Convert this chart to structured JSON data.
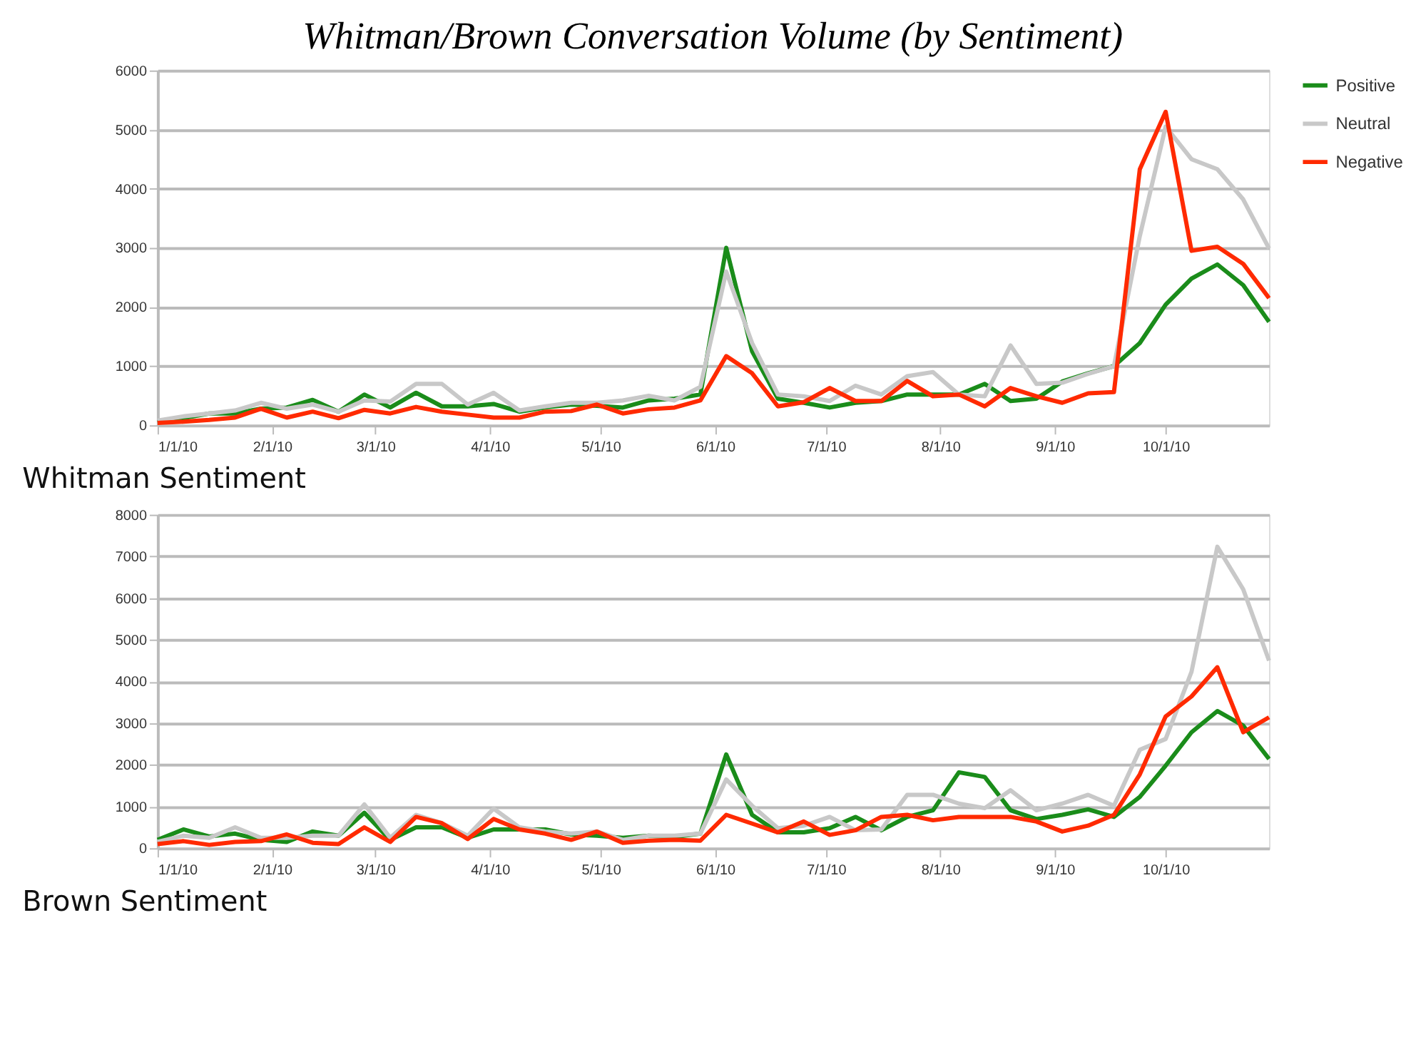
{
  "chart_data": [
    {
      "type": "line",
      "title": "Whitman/Brown Conversation Volume (by Sentiment)",
      "annotations": [
        "Whitman Sentiment"
      ],
      "x": [
        "2010-01-01",
        "2010-01-08",
        "2010-01-15",
        "2010-01-22",
        "2010-01-29",
        "2010-02-05",
        "2010-02-12",
        "2010-02-19",
        "2010-02-26",
        "2010-03-05",
        "2010-03-12",
        "2010-03-19",
        "2010-03-26",
        "2010-04-02",
        "2010-04-09",
        "2010-04-16",
        "2010-04-23",
        "2010-04-30",
        "2010-05-07",
        "2010-05-14",
        "2010-05-21",
        "2010-05-28",
        "2010-06-04",
        "2010-06-11",
        "2010-06-18",
        "2010-06-25",
        "2010-07-02",
        "2010-07-09",
        "2010-07-16",
        "2010-07-23",
        "2010-07-30",
        "2010-08-06",
        "2010-08-13",
        "2010-08-20",
        "2010-08-27",
        "2010-09-03",
        "2010-09-10",
        "2010-09-17",
        "2010-09-24",
        "2010-10-01",
        "2010-10-08",
        "2010-10-15",
        "2010-10-22",
        "2010-10-29"
      ],
      "series": [
        {
          "name": "Positive",
          "color": "#1a8c1a",
          "values": [
            50,
            120,
            200,
            200,
            280,
            300,
            430,
            230,
            520,
            300,
            550,
            320,
            320,
            360,
            230,
            300,
            350,
            330,
            300,
            420,
            450,
            520,
            3000,
            1250,
            450,
            380,
            300,
            380,
            410,
            520,
            520,
            520,
            700,
            410,
            450,
            740,
            880,
            1000,
            1390,
            2040,
            2480,
            2720,
            2370,
            1750
          ]
        },
        {
          "name": "Neutral",
          "color": "#c8c8c8",
          "values": [
            80,
            150,
            200,
            250,
            380,
            280,
            350,
            230,
            420,
            400,
            700,
            700,
            350,
            550,
            250,
            320,
            380,
            380,
            420,
            500,
            420,
            650,
            2600,
            1390,
            520,
            490,
            410,
            670,
            520,
            830,
            900,
            520,
            490,
            1350,
            700,
            720,
            870,
            1000,
            3200,
            5050,
            4500,
            4330,
            3820,
            2990
          ]
        },
        {
          "name": "Negative",
          "color": "#ff2a00",
          "values": [
            40,
            60,
            90,
            130,
            280,
            130,
            230,
            120,
            260,
            200,
            310,
            230,
            180,
            130,
            130,
            230,
            240,
            350,
            200,
            270,
            300,
            420,
            1170,
            880,
            320,
            390,
            630,
            410,
            410,
            750,
            490,
            520,
            320,
            630,
            490,
            380,
            540,
            560,
            4330,
            5300,
            2950,
            3020,
            2730,
            2150
          ]
        }
      ],
      "xlim": [
        "2010-01-01",
        "2010-10-29"
      ],
      "xticks": [
        {
          "value": "2010-01-01",
          "label": "1/1/10"
        },
        {
          "value": "2010-02-01",
          "label": "2/1/10"
        },
        {
          "value": "2010-03-01",
          "label": "3/1/10"
        },
        {
          "value": "2010-04-01",
          "label": "4/1/10"
        },
        {
          "value": "2010-05-01",
          "label": "5/1/10"
        },
        {
          "value": "2010-06-01",
          "label": "6/1/10"
        },
        {
          "value": "2010-07-01",
          "label": "7/1/10"
        },
        {
          "value": "2010-08-01",
          "label": "8/1/10"
        },
        {
          "value": "2010-09-01",
          "label": "9/1/10"
        },
        {
          "value": "2010-10-01",
          "label": "10/1/10"
        }
      ],
      "ylim": [
        0,
        6000
      ],
      "yticks": [
        0,
        1000,
        2000,
        3000,
        4000,
        5000,
        6000
      ],
      "grid": "y",
      "legend": "right",
      "marker": "none",
      "line_style": "solid"
    },
    {
      "type": "line",
      "annotations": [
        "Brown Sentiment"
      ],
      "x": [
        "2010-01-01",
        "2010-01-08",
        "2010-01-15",
        "2010-01-22",
        "2010-01-29",
        "2010-02-05",
        "2010-02-12",
        "2010-02-19",
        "2010-02-26",
        "2010-03-05",
        "2010-03-12",
        "2010-03-19",
        "2010-03-26",
        "2010-04-02",
        "2010-04-09",
        "2010-04-16",
        "2010-04-23",
        "2010-04-30",
        "2010-05-07",
        "2010-05-14",
        "2010-05-21",
        "2010-05-28",
        "2010-06-04",
        "2010-06-11",
        "2010-06-18",
        "2010-06-25",
        "2010-07-02",
        "2010-07-09",
        "2010-07-16",
        "2010-07-23",
        "2010-07-30",
        "2010-08-06",
        "2010-08-13",
        "2010-08-20",
        "2010-08-27",
        "2010-09-03",
        "2010-09-10",
        "2010-09-17",
        "2010-09-24",
        "2010-10-01",
        "2010-10-08",
        "2010-10-15",
        "2010-10-22",
        "2010-10-29"
      ],
      "series": [
        {
          "name": "Positive",
          "color": "#1a8c1a",
          "values": [
            200,
            450,
            280,
            350,
            200,
            150,
            400,
            300,
            850,
            200,
            500,
            500,
            250,
            450,
            450,
            450,
            330,
            300,
            250,
            300,
            270,
            350,
            2250,
            800,
            380,
            380,
            480,
            750,
            430,
            750,
            910,
            1820,
            1710,
            910,
            700,
            800,
            930,
            750,
            1230,
            1980,
            2780,
            3290,
            2940,
            2140
          ]
        },
        {
          "name": "Neutral",
          "color": "#c8c8c8",
          "values": [
            150,
            300,
            250,
            500,
            250,
            250,
            300,
            300,
            1050,
            250,
            800,
            600,
            300,
            950,
            500,
            400,
            350,
            400,
            200,
            300,
            300,
            350,
            1650,
            1020,
            480,
            540,
            750,
            430,
            450,
            1280,
            1280,
            1070,
            960,
            1390,
            910,
            1070,
            1280,
            1020,
            2360,
            2620,
            4230,
            7230,
            6210,
            4500
          ]
        },
        {
          "name": "Negative",
          "color": "#ff2a00",
          "values": [
            100,
            170,
            80,
            150,
            170,
            330,
            130,
            100,
            500,
            150,
            750,
            600,
            220,
            700,
            450,
            350,
            200,
            400,
            130,
            180,
            200,
            180,
            800,
            590,
            380,
            640,
            320,
            430,
            750,
            800,
            670,
            750,
            750,
            750,
            640,
            400,
            540,
            800,
            1770,
            3160,
            3640,
            4340,
            2780,
            3140
          ]
        }
      ],
      "xlim": [
        "2010-01-01",
        "2010-10-29"
      ],
      "xticks": [
        {
          "value": "2010-01-01",
          "label": "1/1/10"
        },
        {
          "value": "2010-02-01",
          "label": "2/1/10"
        },
        {
          "value": "2010-03-01",
          "label": "3/1/10"
        },
        {
          "value": "2010-04-01",
          "label": "4/1/10"
        },
        {
          "value": "2010-05-01",
          "label": "5/1/10"
        },
        {
          "value": "2010-06-01",
          "label": "6/1/10"
        },
        {
          "value": "2010-07-01",
          "label": "7/1/10"
        },
        {
          "value": "2010-08-01",
          "label": "8/1/10"
        },
        {
          "value": "2010-09-01",
          "label": "9/1/10"
        },
        {
          "value": "2010-10-01",
          "label": "10/1/10"
        }
      ],
      "ylim": [
        0,
        8000
      ],
      "yticks": [
        0,
        1000,
        2000,
        3000,
        4000,
        5000,
        6000,
        7000,
        8000
      ],
      "grid": "y",
      "legend": "right",
      "marker": "none",
      "line_style": "solid"
    }
  ]
}
